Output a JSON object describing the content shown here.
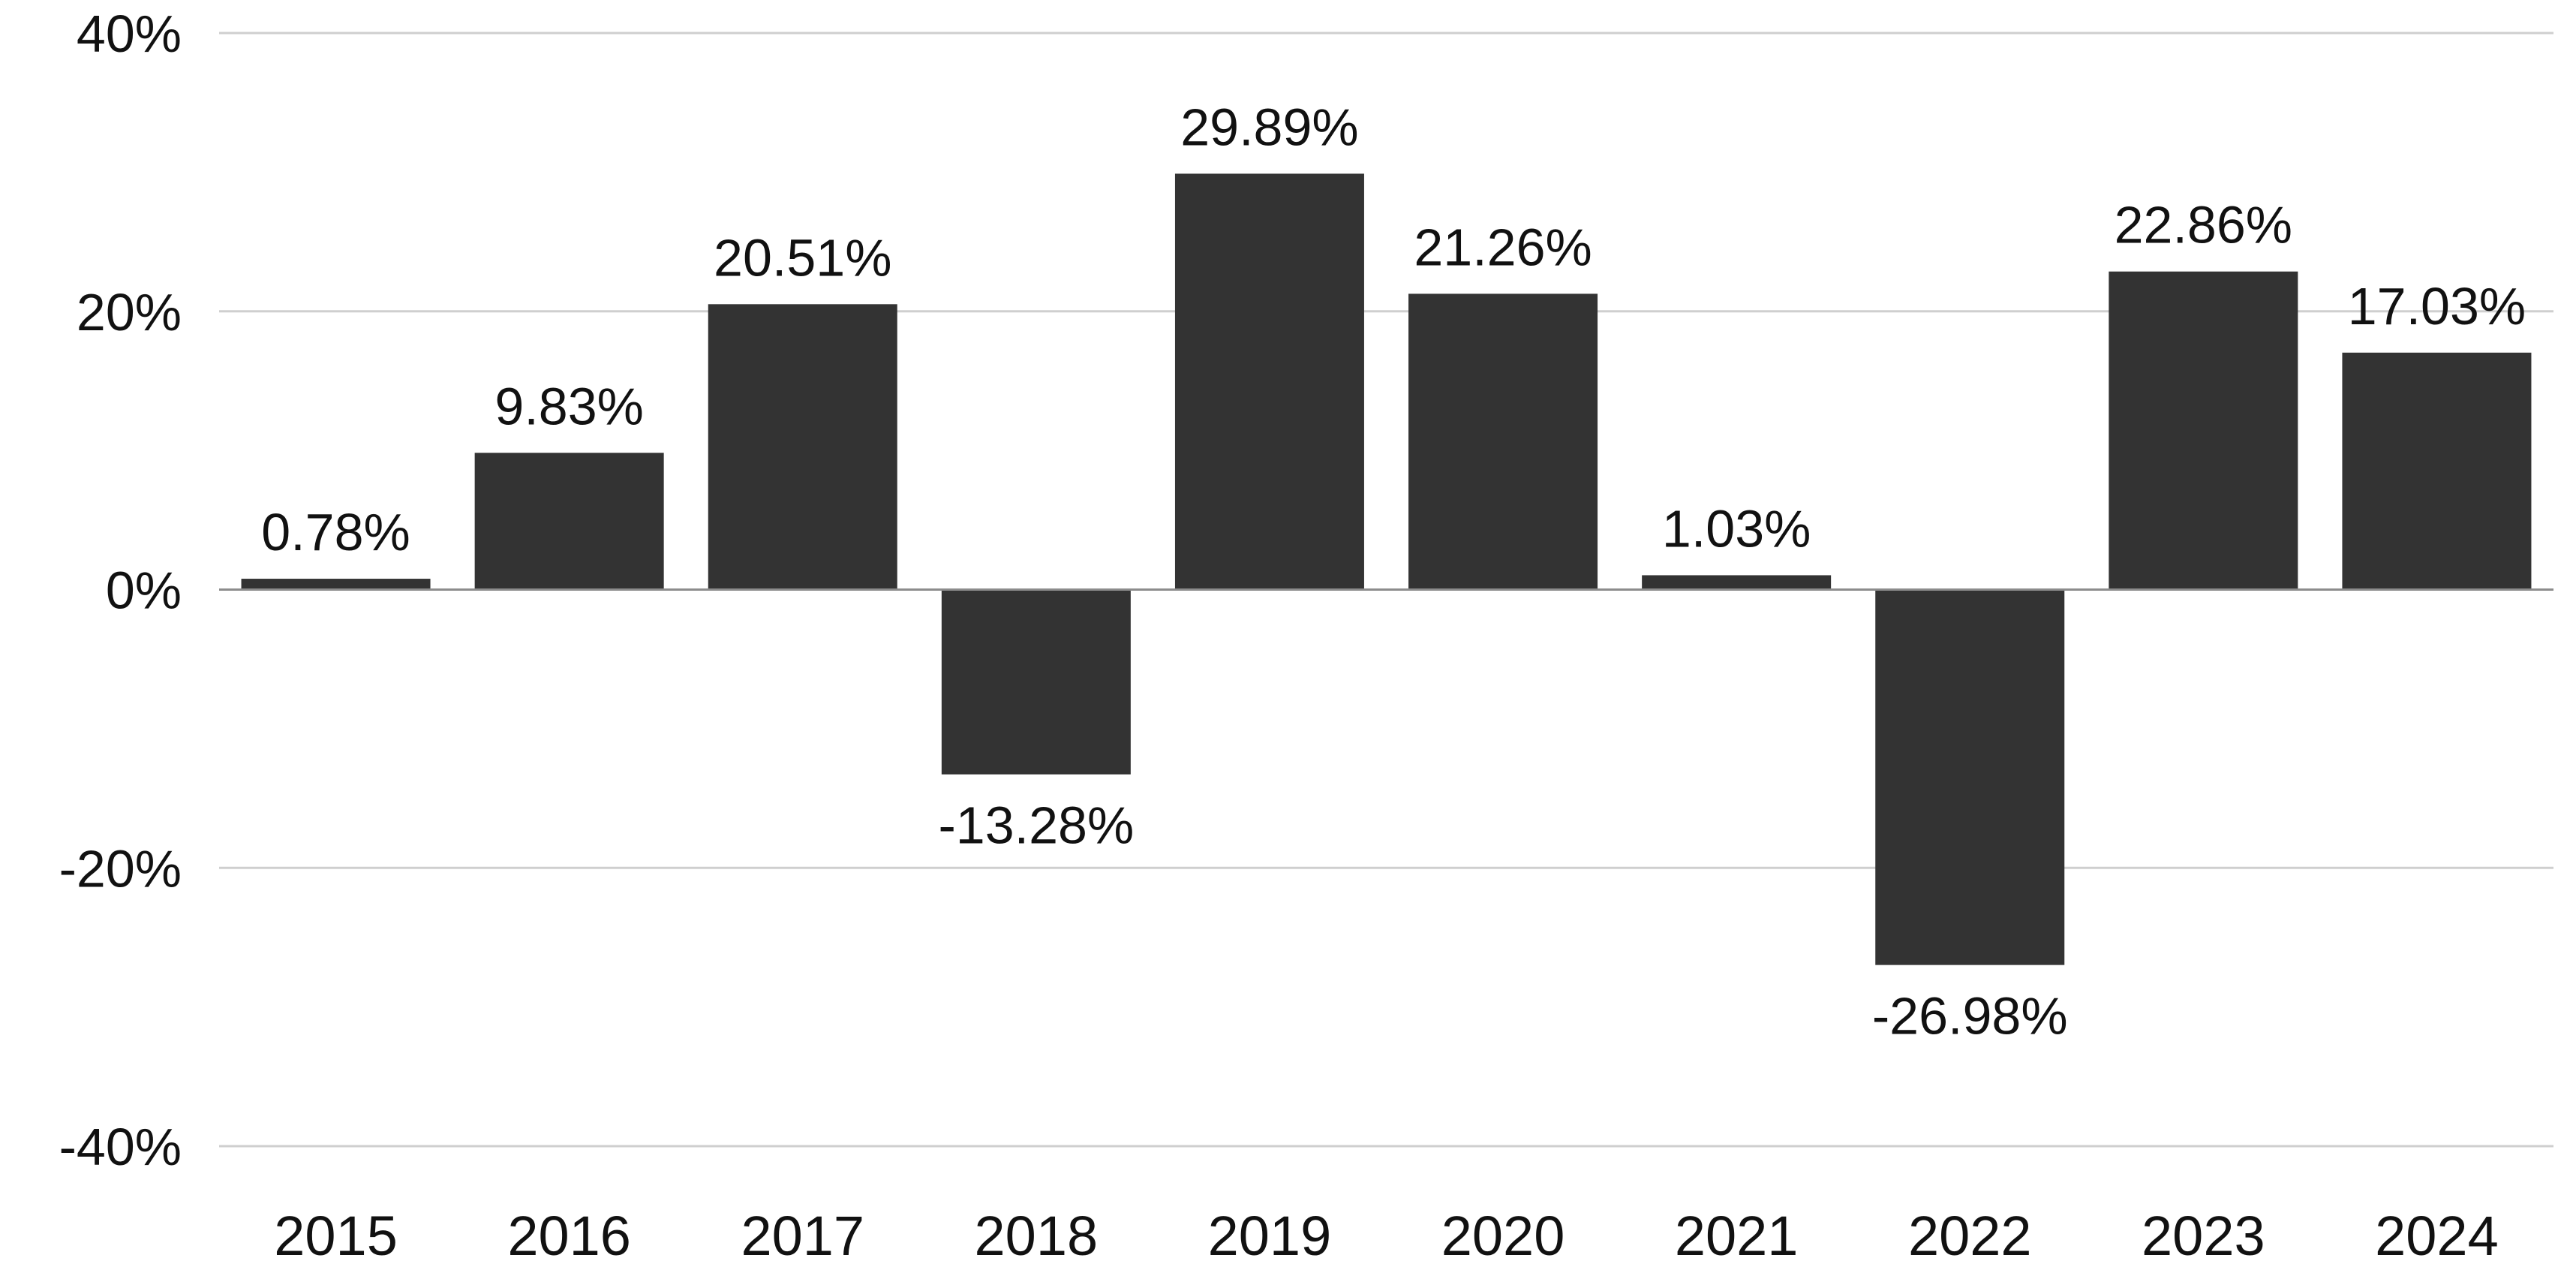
{
  "chart_data": {
    "type": "bar",
    "categories": [
      "2015",
      "2016",
      "2017",
      "2018",
      "2019",
      "2020",
      "2021",
      "2022",
      "2023",
      "2024"
    ],
    "series": [
      {
        "values": [
          0.78,
          9.83,
          20.51,
          -13.28,
          29.89,
          21.26,
          1.03,
          -26.98,
          22.86,
          17.03
        ],
        "labels": [
          "0.78%",
          "9.83%",
          "20.51%",
          "-13.28%",
          "29.89%",
          "21.26%",
          "1.03%",
          "-26.98%",
          "22.86%",
          "17.03%"
        ]
      }
    ],
    "ylim": [
      -40,
      40
    ],
    "yticks": [
      40,
      20,
      0,
      -20,
      -40
    ],
    "ytick_labels": [
      "40%",
      "20%",
      "0%",
      "-20%",
      "-40%"
    ],
    "title": "",
    "xlabel": "",
    "ylabel": "",
    "grid": true,
    "legend": "none",
    "bar_color": "#333333"
  }
}
